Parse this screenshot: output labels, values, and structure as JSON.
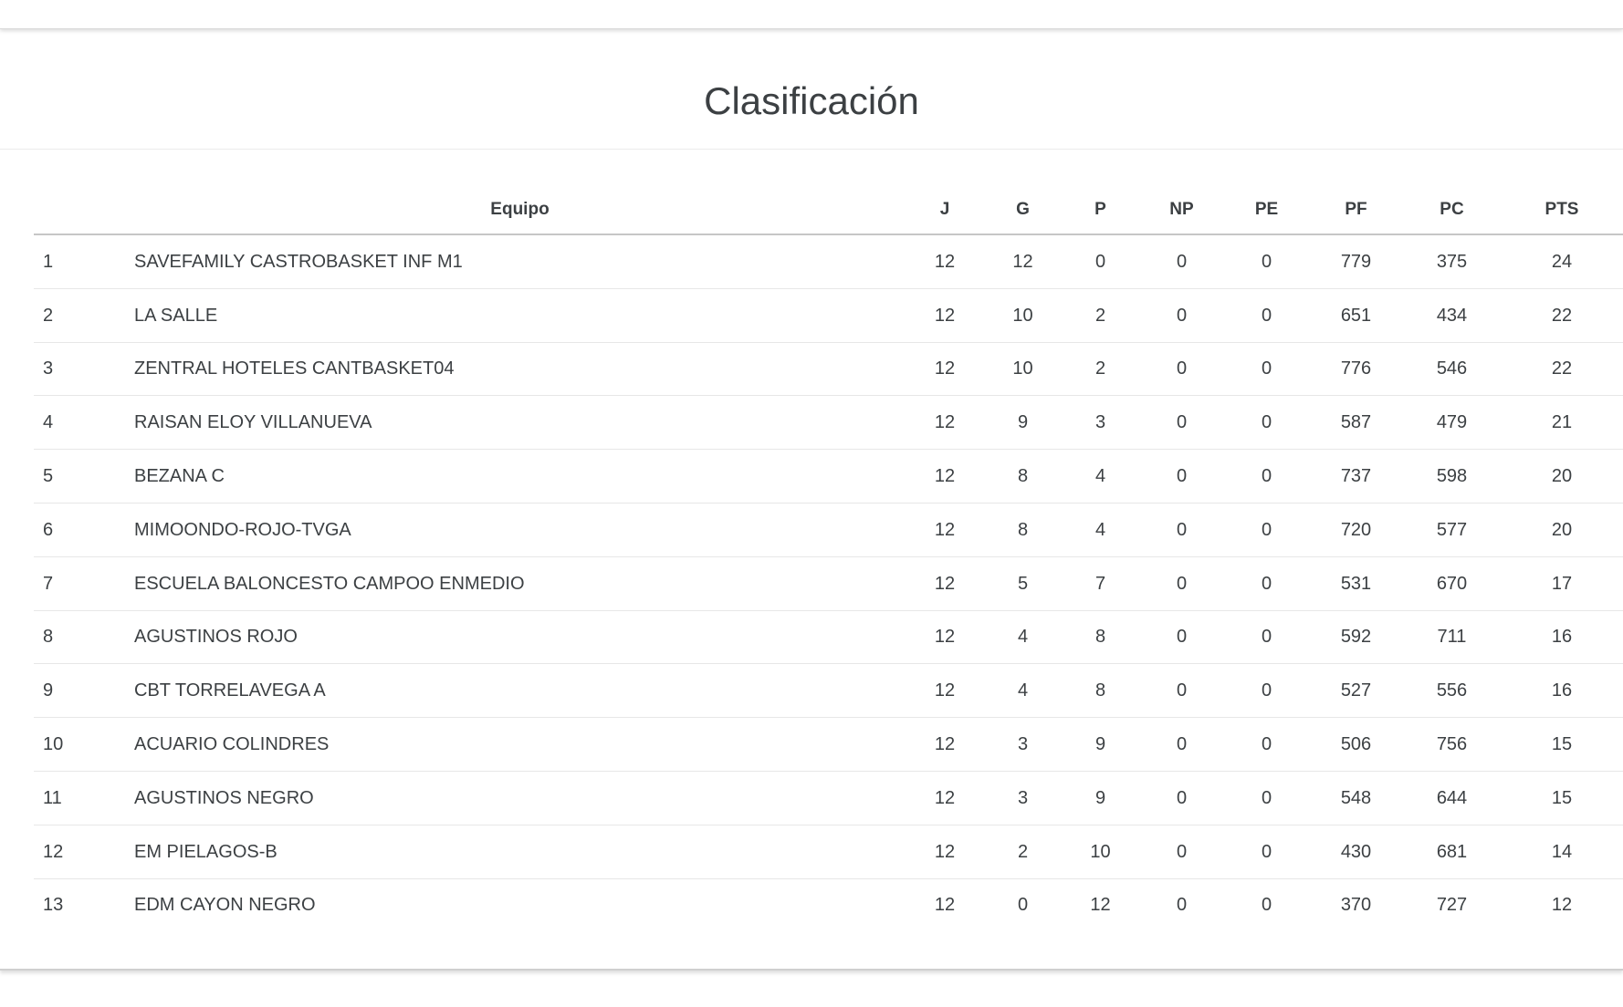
{
  "app": {
    "title": "Clasificación"
  },
  "table": {
    "headers": {
      "pos": "",
      "equipo": "Equipo",
      "j": "J",
      "g": "G",
      "p": "P",
      "np": "NP",
      "pe": "PE",
      "pf": "PF",
      "pc": "PC",
      "pts": "PTS"
    },
    "rows": [
      {
        "pos": "1",
        "team": "SAVEFAMILY CASTROBASKET INF M1",
        "j": "12",
        "g": "12",
        "p": "0",
        "np": "0",
        "pe": "0",
        "pf": "779",
        "pc": "375",
        "pts": "24"
      },
      {
        "pos": "2",
        "team": "LA SALLE",
        "j": "12",
        "g": "10",
        "p": "2",
        "np": "0",
        "pe": "0",
        "pf": "651",
        "pc": "434",
        "pts": "22"
      },
      {
        "pos": "3",
        "team": "ZENTRAL HOTELES CANTBASKET04",
        "j": "12",
        "g": "10",
        "p": "2",
        "np": "0",
        "pe": "0",
        "pf": "776",
        "pc": "546",
        "pts": "22"
      },
      {
        "pos": "4",
        "team": "RAISAN ELOY VILLANUEVA",
        "j": "12",
        "g": "9",
        "p": "3",
        "np": "0",
        "pe": "0",
        "pf": "587",
        "pc": "479",
        "pts": "21"
      },
      {
        "pos": "5",
        "team": "BEZANA C",
        "j": "12",
        "g": "8",
        "p": "4",
        "np": "0",
        "pe": "0",
        "pf": "737",
        "pc": "598",
        "pts": "20"
      },
      {
        "pos": "6",
        "team": "MIMOONDO-ROJO-TVGA",
        "j": "12",
        "g": "8",
        "p": "4",
        "np": "0",
        "pe": "0",
        "pf": "720",
        "pc": "577",
        "pts": "20"
      },
      {
        "pos": "7",
        "team": "ESCUELA BALONCESTO CAMPOO ENMEDIO",
        "j": "12",
        "g": "5",
        "p": "7",
        "np": "0",
        "pe": "0",
        "pf": "531",
        "pc": "670",
        "pts": "17"
      },
      {
        "pos": "8",
        "team": "AGUSTINOS ROJO",
        "j": "12",
        "g": "4",
        "p": "8",
        "np": "0",
        "pe": "0",
        "pf": "592",
        "pc": "711",
        "pts": "16"
      },
      {
        "pos": "9",
        "team": "CBT TORRELAVEGA A",
        "j": "12",
        "g": "4",
        "p": "8",
        "np": "0",
        "pe": "0",
        "pf": "527",
        "pc": "556",
        "pts": "16"
      },
      {
        "pos": "10",
        "team": "ACUARIO COLINDRES",
        "j": "12",
        "g": "3",
        "p": "9",
        "np": "0",
        "pe": "0",
        "pf": "506",
        "pc": "756",
        "pts": "15"
      },
      {
        "pos": "11",
        "team": "AGUSTINOS NEGRO",
        "j": "12",
        "g": "3",
        "p": "9",
        "np": "0",
        "pe": "0",
        "pf": "548",
        "pc": "644",
        "pts": "15"
      },
      {
        "pos": "12",
        "team": "EM PIELAGOS-B",
        "j": "12",
        "g": "2",
        "p": "10",
        "np": "0",
        "pe": "0",
        "pf": "430",
        "pc": "681",
        "pts": "14"
      },
      {
        "pos": "13",
        "team": "EDM CAYON NEGRO",
        "j": "12",
        "g": "0",
        "p": "12",
        "np": "0",
        "pe": "0",
        "pf": "370",
        "pc": "727",
        "pts": "12"
      }
    ]
  },
  "colors": {
    "text": "#3c4043",
    "row_divider": "#e7e7e7",
    "header_divider": "#c6c6c6",
    "sheet_edge": "#cfcfcf"
  }
}
